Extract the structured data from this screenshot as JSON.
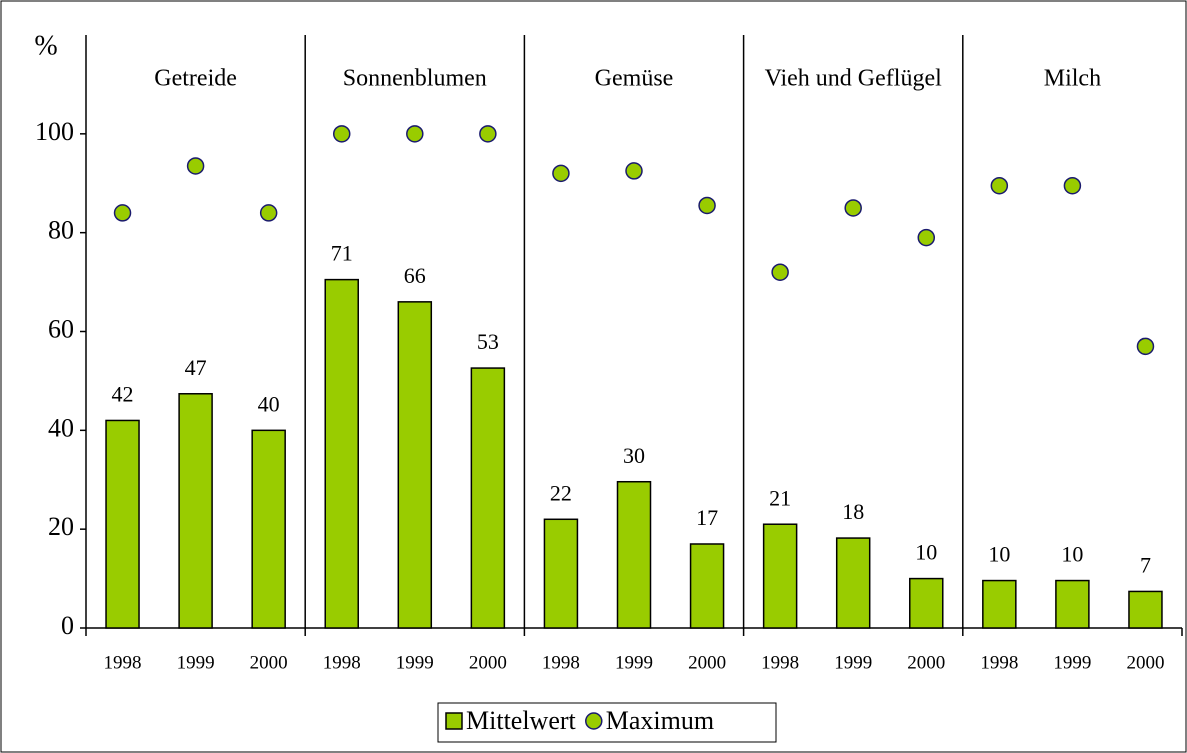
{
  "chart_data": {
    "type": "bar",
    "y_label": "%",
    "categories": [
      "1998",
      "1999",
      "2000",
      "1998",
      "1999",
      "2000",
      "1998",
      "1999",
      "2000",
      "1998",
      "1999",
      "2000",
      "1998",
      "1999",
      "2000"
    ],
    "groups": [
      "Getreide",
      "Sonnenblumen",
      "Gemüse",
      "Vieh und Geflügel",
      "Milch"
    ],
    "series": [
      {
        "name": "Mittelwert",
        "mark": "bar",
        "color": "#99cc00",
        "values": [
          42,
          47.4,
          40,
          70.5,
          66,
          52.6,
          22,
          29.6,
          17,
          21,
          18.2,
          10,
          9.6,
          9.6,
          7.4
        ],
        "value_labels": [
          "42",
          "47",
          "40",
          "71",
          "66",
          "53",
          "22",
          "30",
          "17",
          "21",
          "18",
          "10",
          "10",
          "10",
          "7"
        ]
      },
      {
        "name": "Maximum",
        "mark": "dot",
        "color": "#99cc00",
        "values": [
          84,
          93.5,
          84,
          100,
          100,
          100,
          92,
          92.5,
          85.5,
          72,
          85,
          79,
          89.5,
          89.5,
          57
        ]
      }
    ],
    "ylim": [
      0,
      120
    ],
    "yticks": [
      0,
      20,
      40,
      60,
      80,
      100
    ],
    "grid": false
  }
}
